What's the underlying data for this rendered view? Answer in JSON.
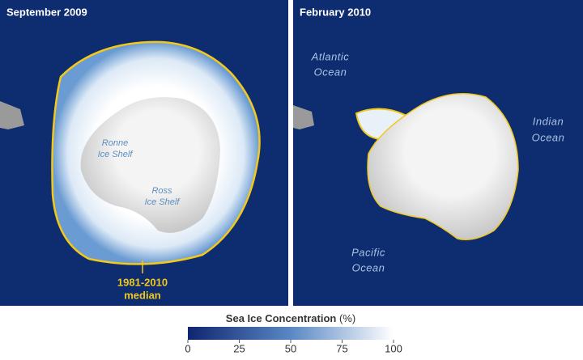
{
  "panels": [
    {
      "title": "September 2009",
      "labels": [
        [
          "Ronne",
          "Ice Shelf"
        ],
        [
          "Ross",
          "Ice Shelf"
        ]
      ],
      "median_label": [
        "1981-2010",
        "median"
      ]
    },
    {
      "title": "February 2010",
      "labels": [
        [
          "Atlantic",
          "Ocean"
        ],
        [
          "Indian",
          "Ocean"
        ],
        [
          "Pacific",
          "Ocean"
        ]
      ]
    }
  ],
  "colorbar": {
    "title": "Sea Ice Concentration",
    "unit": "(%)",
    "range": [
      0,
      100
    ],
    "ticks": [
      0,
      25,
      50,
      75,
      100
    ]
  }
}
